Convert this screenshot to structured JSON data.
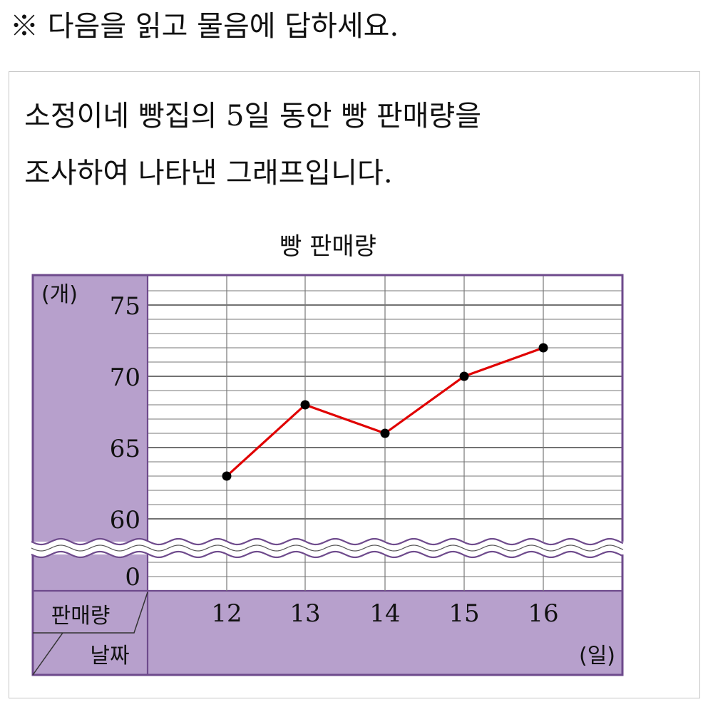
{
  "instruction": "※ 다음을 읽고 물음에 답하세요.",
  "problem": {
    "line1": "소정이네 빵집의 5일 동안 빵 판매량을",
    "line2": "조사하여 나타낸 그래프입니다."
  },
  "colors": {
    "purple_fill": "#b7a0cc",
    "purple_border": "#6e4a8c",
    "line": "#e00000",
    "point": "#000000",
    "grid": "#777777"
  },
  "chart_data": {
    "type": "line",
    "title": "빵 판매량",
    "y_unit": "(개)",
    "x_unit": "(일)",
    "corner_top": "판매량",
    "corner_bottom": "날짜",
    "categories": [
      "12",
      "13",
      "14",
      "15",
      "16"
    ],
    "values": [
      63,
      68,
      66,
      70,
      72
    ],
    "y_ticks": [
      "75",
      "70",
      "65",
      "60",
      "0"
    ],
    "ylim": [
      60,
      76
    ],
    "axis_break": true,
    "grid": true
  }
}
